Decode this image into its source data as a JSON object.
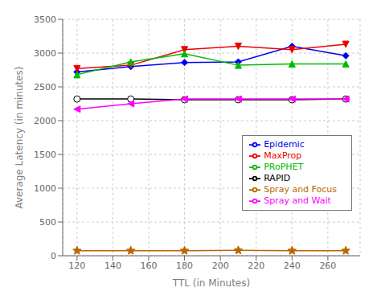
{
  "chart_data": {
    "type": "line",
    "x": [
      120,
      150,
      180,
      210,
      240,
      270
    ],
    "series": [
      {
        "name": "Epidemic",
        "color": "#0000ee",
        "marker": "diamond",
        "values": [
          2720,
          2800,
          2860,
          2870,
          3100,
          2960
        ]
      },
      {
        "name": "RAPID",
        "color": "#000000",
        "marker": "open-circle",
        "values": [
          2320,
          2320,
          2310,
          2310,
          2310,
          2320
        ]
      },
      {
        "name": "MaxProp",
        "color": "#ee0000",
        "marker": "triangle-down",
        "values": [
          2770,
          2820,
          3050,
          3100,
          3050,
          3130
        ]
      },
      {
        "name": "PRoPHET",
        "color": "#00bb00",
        "marker": "triangle-up",
        "values": [
          2680,
          2870,
          2990,
          2820,
          2840,
          2840
        ]
      },
      {
        "name": "Spray and Wait",
        "color": "#ff00ff",
        "marker": "triangle-left",
        "values": [
          2170,
          2250,
          2320,
          2320,
          2320,
          2320
        ]
      },
      {
        "name": "Spray and Focus",
        "color": "#bb6600",
        "marker": "star",
        "values": [
          75,
          75,
          75,
          80,
          75,
          75
        ]
      }
    ],
    "xlabel": "TTL (in Minutes)",
    "ylabel": "Average Latency (in minutes)",
    "xlim": [
      112,
      278
    ],
    "xticks": [
      120,
      140,
      160,
      180,
      200,
      220,
      240,
      260
    ],
    "ylim": [
      0,
      3500
    ],
    "yticks": [
      0,
      500,
      1000,
      1500,
      2000,
      2500,
      3000,
      3500
    ],
    "grid": true,
    "legend": "right"
  }
}
